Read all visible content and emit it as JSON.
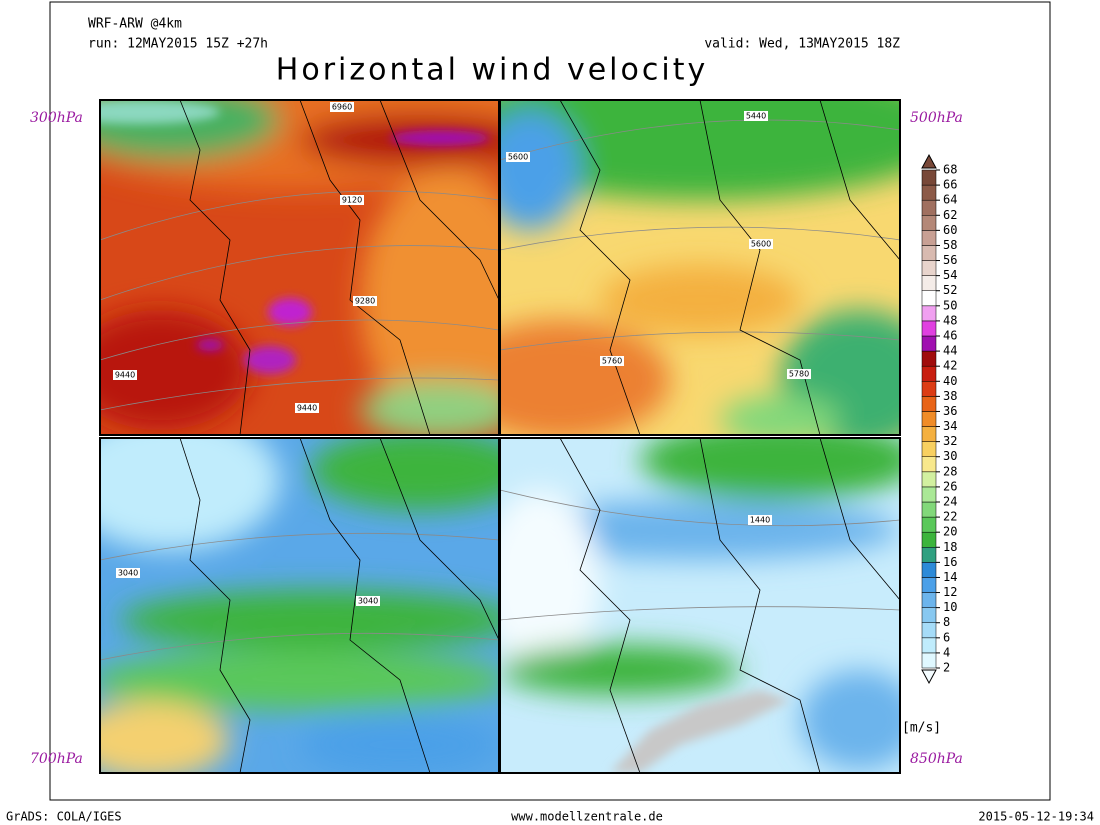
{
  "header": {
    "model": "WRF-ARW @4km",
    "run": "run: 12MAY2015 15Z +27h",
    "valid": "valid: Wed, 13MAY2015 18Z",
    "title": "Horizontal wind velocity"
  },
  "panels": [
    {
      "level": "300hPa",
      "contour_labels": [
        "6960",
        "9120",
        "9280",
        "9440",
        "9440"
      ]
    },
    {
      "level": "500hPa",
      "contour_labels": [
        "5440",
        "5600",
        "5600",
        "5760",
        "5780"
      ]
    },
    {
      "level": "700hPa",
      "contour_labels": [
        "3040",
        "3040"
      ]
    },
    {
      "level": "850hPa",
      "contour_labels": [
        "1440"
      ]
    }
  ],
  "colorbar": {
    "ticks": [
      2,
      4,
      6,
      8,
      10,
      12,
      14,
      16,
      18,
      20,
      22,
      24,
      26,
      28,
      30,
      32,
      34,
      36,
      38,
      40,
      42,
      44,
      46,
      48,
      50,
      52,
      54,
      56,
      58,
      60,
      62,
      64,
      66,
      68
    ],
    "colors": [
      "#e0f8ff",
      "#c0ecfc",
      "#a6dcf8",
      "#88c8f0",
      "#6cb4ec",
      "#4ca0e8",
      "#2d8ad8",
      "#30a080",
      "#3cb43c",
      "#5ac85a",
      "#82d87a",
      "#aae896",
      "#d2f0a0",
      "#f8e88c",
      "#f8d060",
      "#f4b040",
      "#f08c28",
      "#e86418",
      "#dc3c14",
      "#c81e10",
      "#a00c0c",
      "#a010b0",
      "#e040e0",
      "#f0a0f0",
      "#ffffff",
      "#f4ece8",
      "#e8d4cc",
      "#d8bab0",
      "#c8a094",
      "#b48878",
      "#a07060",
      "#8c5a48",
      "#784838"
    ],
    "unit": "[m/s]"
  },
  "footer": {
    "left": "GrADS: COLA/IGES",
    "center": "www.modellzentrale.de",
    "right": "2015-05-12-19:34"
  }
}
